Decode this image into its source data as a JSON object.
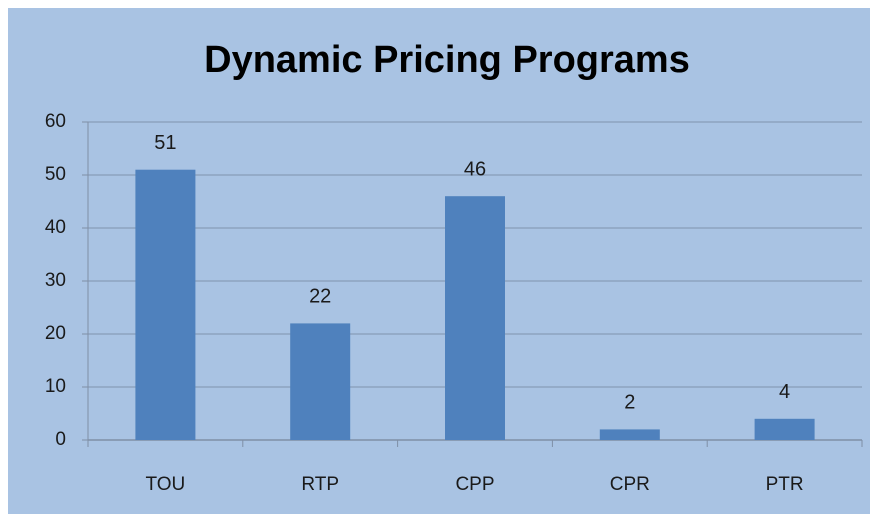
{
  "chart_data": {
    "type": "bar",
    "title": "Dynamic Pricing Programs",
    "categories": [
      "TOU",
      "RTP",
      "CPP",
      "CPR",
      "PTR"
    ],
    "values": [
      51,
      22,
      46,
      2,
      4
    ],
    "color": "#4f81bd",
    "ylim": [
      0,
      60
    ],
    "yticks": [
      0,
      10,
      20,
      30,
      40,
      50,
      60
    ],
    "grid": true
  }
}
